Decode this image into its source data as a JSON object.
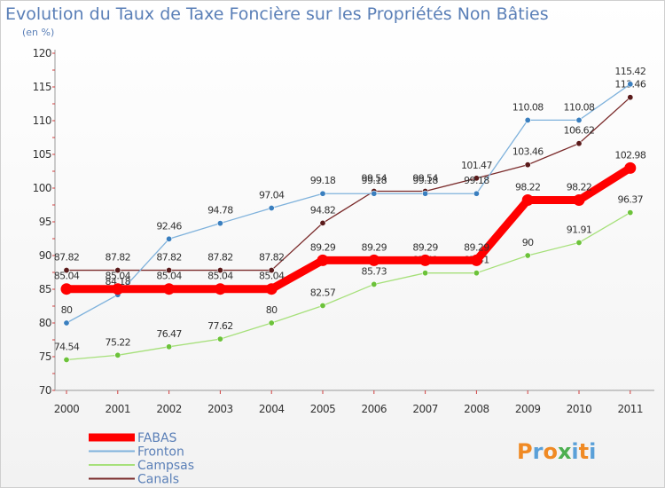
{
  "logo": {
    "text": "Proxiti",
    "letter_colors": [
      "#f08a24",
      "#5aa0d8",
      "#f08a24",
      "#4caf50",
      "#5aa0d8",
      "#f08a24",
      "#5aa0d8"
    ]
  },
  "chart_data": {
    "type": "line",
    "title": "Evolution du Taux de Taxe Foncière sur les Propriétés Non Bâties",
    "subtitle": "(en %)",
    "categories": [
      "2000",
      "2001",
      "2002",
      "2003",
      "2004",
      "2005",
      "2006",
      "2007",
      "2008",
      "2009",
      "2010",
      "2011"
    ],
    "ylim": [
      70,
      120
    ],
    "yticks": [
      70,
      75,
      80,
      85,
      90,
      95,
      100,
      105,
      110,
      115,
      120
    ],
    "grid": false,
    "legend_position": "bottom-left",
    "series": [
      {
        "name": "Canals",
        "color": "#7a2a2a",
        "marker_color": "#5a1a1a",
        "values": [
          87.82,
          87.82,
          87.82,
          87.82,
          87.82,
          94.82,
          99.54,
          99.54,
          101.47,
          103.46,
          106.62,
          113.46
        ],
        "labels": [
          "87.82",
          "87.82",
          "87.82",
          "87.82",
          "87.82",
          "94.82",
          "99.54",
          "99.54",
          "101.47",
          "103.46",
          "106.62",
          "113.46"
        ]
      },
      {
        "name": "Campsas",
        "color": "#a6e07a",
        "marker_color": "#6cc23a",
        "values": [
          74.54,
          75.22,
          76.47,
          77.62,
          80,
          82.57,
          85.73,
          87.41,
          87.41,
          90,
          91.91,
          96.37
        ],
        "labels": [
          "74.54",
          "75.22",
          "76.47",
          "77.62",
          "80",
          "82.57",
          "85.73",
          "87.41",
          "87.41",
          "90",
          "91.91",
          "96.37"
        ]
      },
      {
        "name": "Fronton",
        "color": "#7fb2dc",
        "marker_color": "#3a7fbf",
        "values": [
          80,
          84.18,
          92.46,
          94.78,
          97.04,
          99.18,
          99.18,
          99.18,
          99.18,
          110.08,
          110.08,
          115.42
        ],
        "labels": [
          "80",
          "84.18",
          "92.46",
          "94.78",
          "97.04",
          "99.18",
          "99.18",
          "99.18",
          "99.18",
          "110.08",
          "110.08",
          "115.42"
        ]
      },
      {
        "name": "FABAS",
        "color": "#ff0000",
        "marker_color": "#ff0000",
        "values": [
          85.04,
          85.04,
          85.04,
          85.04,
          85.04,
          89.29,
          89.29,
          89.29,
          89.29,
          98.22,
          98.22,
          102.98
        ],
        "labels": [
          "85.04",
          "85.04",
          "85.04",
          "85.04",
          "85.04",
          "89.29",
          "89.29",
          "89.29",
          "89.29",
          "98.22",
          "98.22",
          "102.98"
        ]
      }
    ],
    "legend_order": [
      "FABAS",
      "Fronton",
      "Campsas",
      "Canals"
    ]
  }
}
